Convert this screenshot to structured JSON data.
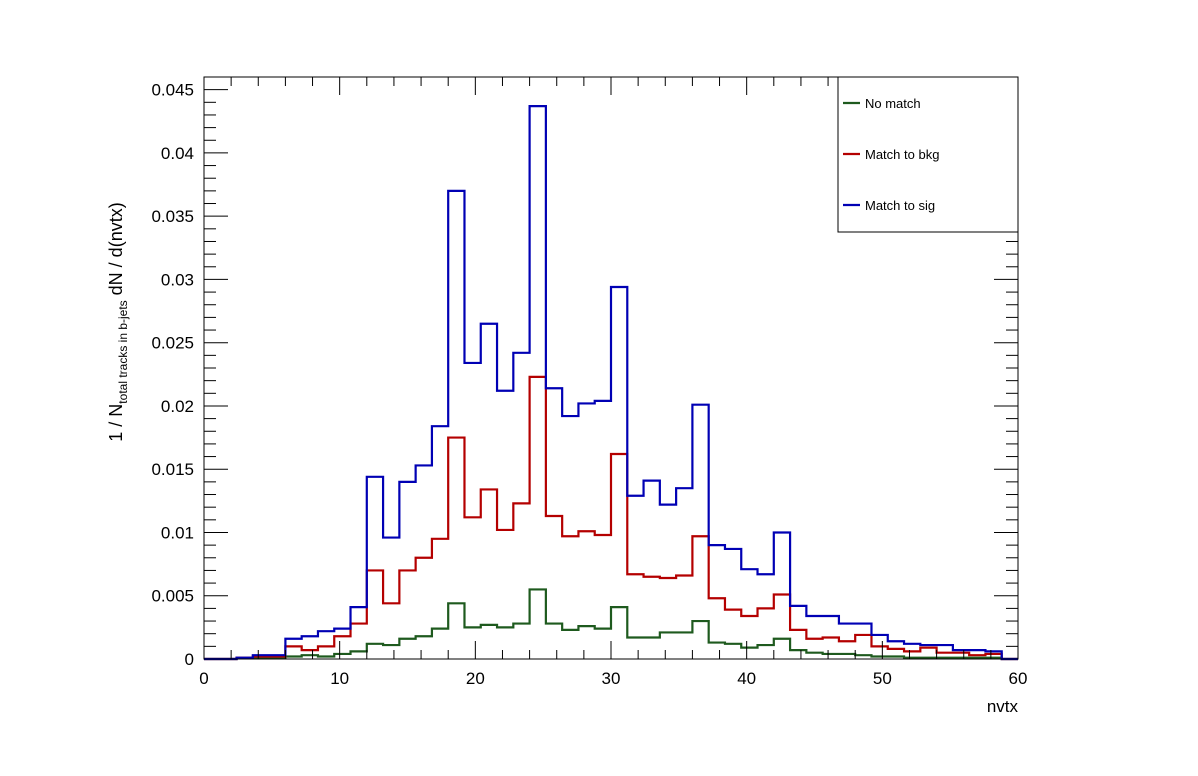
{
  "chart_data": {
    "type": "histogram",
    "title": "",
    "xlabel": "nvtx",
    "ylabel": {
      "main": "1 / N",
      "subscript": "total tracks in b-jets",
      "suffix": " dN / d(nvtx)"
    },
    "xlim": [
      0,
      60
    ],
    "ylim": [
      0,
      0.046
    ],
    "bin_width": 1.2,
    "x_ticks": [
      0,
      10,
      20,
      30,
      40,
      50,
      60
    ],
    "x_tick_labels": [
      "0",
      "10",
      "20",
      "30",
      "40",
      "50",
      "60"
    ],
    "y_ticks": [
      0,
      0.005,
      0.01,
      0.015,
      0.02,
      0.025,
      0.03,
      0.035,
      0.04,
      0.045
    ],
    "y_tick_labels": [
      "0",
      "0.005",
      "0.01",
      "0.015",
      "0.02",
      "0.025",
      "0.03",
      "0.035",
      "0.04",
      "0.045"
    ],
    "grid": false,
    "legend_position": "top-right",
    "series": [
      {
        "name": "No match",
        "color": "#1e5a1e",
        "values": [
          0,
          0,
          5e-05,
          5e-05,
          0.0001,
          0.0002,
          0.0003,
          0.0002,
          0.0004,
          0.0006,
          0.0012,
          0.0011,
          0.0016,
          0.0018,
          0.0024,
          0.0044,
          0.0025,
          0.0027,
          0.0025,
          0.0028,
          0.0055,
          0.0028,
          0.0023,
          0.0026,
          0.0024,
          0.0041,
          0.0017,
          0.0017,
          0.0021,
          0.0021,
          0.003,
          0.0013,
          0.0012,
          0.0009,
          0.0011,
          0.0016,
          0.0007,
          0.0005,
          0.0004,
          0.0004,
          0.0003,
          0.0002,
          0.0002,
          0.0001,
          0.0001,
          0.0001,
          0.0001,
          0.0001,
          0.0001,
          0
        ]
      },
      {
        "name": "Match to bkg",
        "color": "#b40000",
        "values": [
          0,
          0,
          0.0001,
          0.0002,
          0.0002,
          0.001,
          0.0007,
          0.001,
          0.0018,
          0.0028,
          0.007,
          0.0044,
          0.007,
          0.008,
          0.0095,
          0.0175,
          0.0112,
          0.0134,
          0.0102,
          0.0123,
          0.0223,
          0.0113,
          0.0097,
          0.0101,
          0.0098,
          0.0162,
          0.0067,
          0.0065,
          0.0064,
          0.0066,
          0.0097,
          0.0048,
          0.0039,
          0.0034,
          0.004,
          0.0051,
          0.0023,
          0.0016,
          0.0017,
          0.0014,
          0.0019,
          0.001,
          0.0008,
          0.0006,
          0.0009,
          0.0005,
          0.0005,
          0.0003,
          0.0004,
          0
        ]
      },
      {
        "name": "Match to sig",
        "color": "#0000b4",
        "values": [
          0,
          0,
          0.0001,
          0.0003,
          0.0003,
          0.0016,
          0.0018,
          0.0022,
          0.0024,
          0.0041,
          0.0144,
          0.0096,
          0.014,
          0.0153,
          0.0184,
          0.037,
          0.0234,
          0.0265,
          0.0212,
          0.0242,
          0.0437,
          0.0214,
          0.0192,
          0.0202,
          0.0204,
          0.0294,
          0.0129,
          0.0141,
          0.0122,
          0.0135,
          0.0201,
          0.009,
          0.0087,
          0.0071,
          0.0067,
          0.01,
          0.0042,
          0.0034,
          0.0034,
          0.0028,
          0.0028,
          0.0019,
          0.0014,
          0.0012,
          0.0011,
          0.0011,
          0.0007,
          0.0007,
          0.0006,
          0
        ]
      }
    ]
  }
}
